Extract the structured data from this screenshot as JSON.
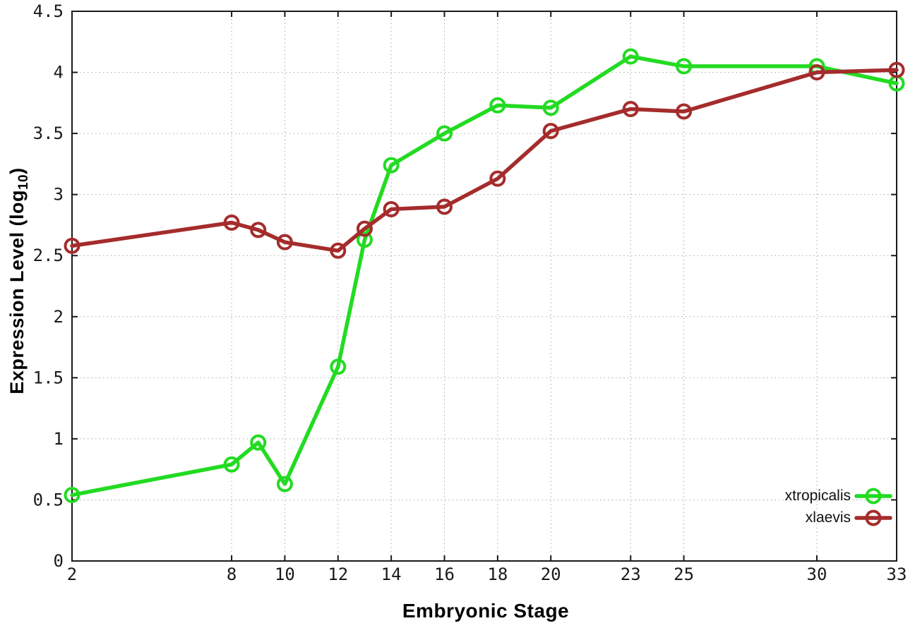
{
  "figure": {
    "background": "#ffffff",
    "border_color": "#1a1a1a",
    "grid_color": "#a8a8a8",
    "tick_text_color": "#1a1a1a"
  },
  "chart_data": {
    "type": "line",
    "title": "",
    "xlabel": "Embryonic Stage",
    "ylabel": {
      "main": "Expression Level (log",
      "sub": "10",
      "close": ")"
    },
    "x": [
      2,
      8,
      9,
      10,
      12,
      13,
      14,
      16,
      18,
      20,
      23,
      25,
      30,
      33
    ],
    "series": [
      {
        "name": "xtropicalis",
        "color": "#22DB22",
        "values": [
          0.54,
          0.79,
          0.97,
          0.63,
          1.59,
          2.63,
          3.24,
          3.5,
          3.73,
          3.71,
          4.13,
          4.05,
          4.05,
          3.91
        ]
      },
      {
        "name": "xlaevis",
        "color": "#A52C2C",
        "values": [
          2.58,
          2.77,
          2.71,
          2.61,
          2.54,
          2.72,
          2.88,
          2.9,
          3.13,
          3.52,
          3.7,
          3.68,
          4.0,
          4.02
        ]
      }
    ],
    "xlim": [
      2,
      33
    ],
    "ylim": [
      0,
      4.5
    ],
    "xticks": {
      "values": [
        2,
        8,
        10,
        12,
        14,
        16,
        18,
        20,
        23,
        25,
        30,
        33
      ],
      "labels": [
        "2",
        "8",
        "10",
        "12",
        "14",
        "16",
        "18",
        "20",
        "23",
        "25",
        "30",
        "33"
      ]
    },
    "yticks": {
      "values": [
        0,
        0.5,
        1,
        1.5,
        2,
        2.5,
        3,
        3.5,
        4,
        4.5
      ],
      "labels": [
        "0",
        "0.5",
        "1",
        "1.5",
        "2",
        "2.5",
        "3",
        "3.5",
        "4",
        "4.5"
      ]
    },
    "grid": true,
    "legend_position": "bottom-right",
    "marker": "open-circle"
  }
}
